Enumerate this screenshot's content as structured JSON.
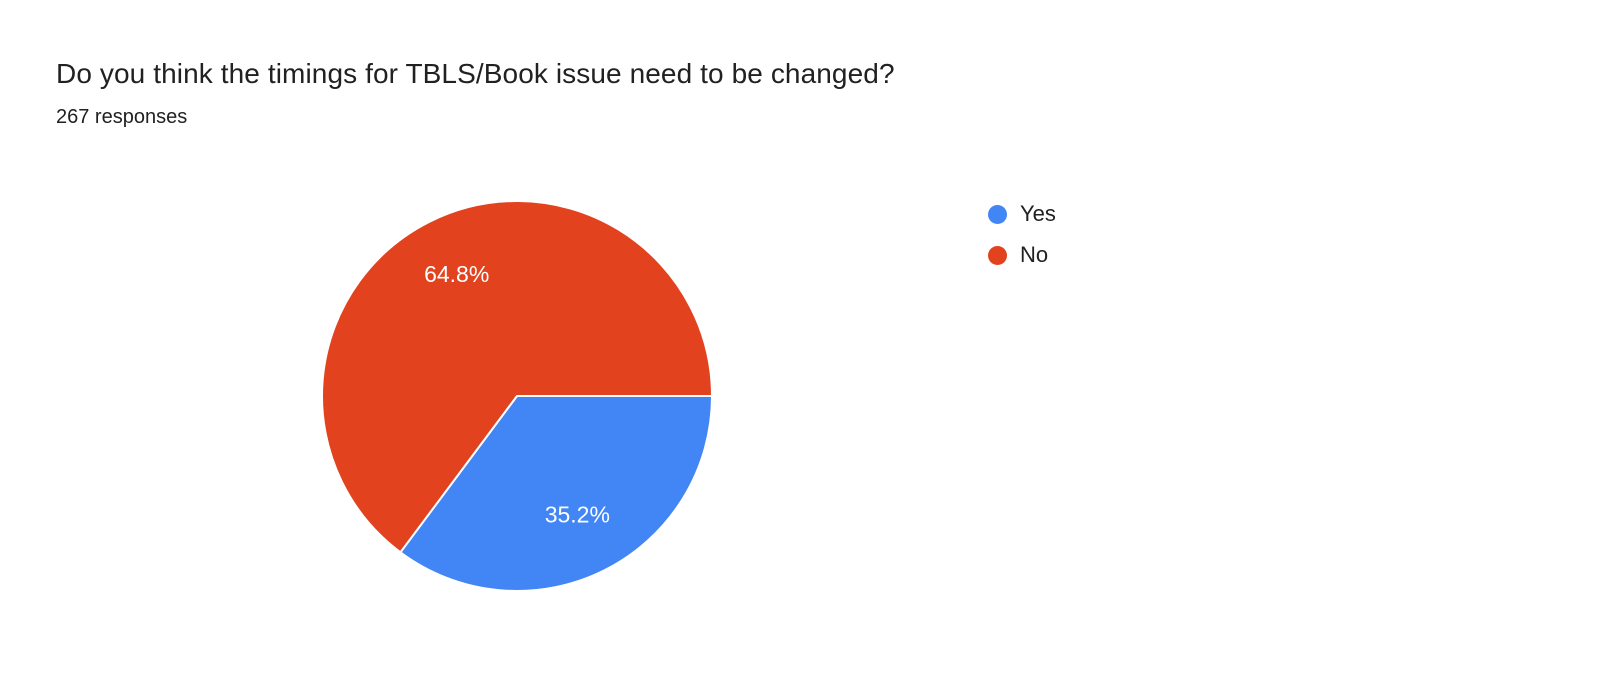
{
  "header": {
    "title": "Do you think the timings for TBLS/Book issue need to be changed?",
    "responses": "267 responses"
  },
  "chart_data": {
    "type": "pie",
    "title": "Do you think the timings for TBLS/Book issue need to be changed?",
    "responses_count": 267,
    "slices": [
      {
        "label": "Yes",
        "value": 35.2,
        "display": "35.2%",
        "color": "#4285f4"
      },
      {
        "label": "No",
        "value": 64.8,
        "display": "64.8%",
        "color": "#e2431e"
      }
    ],
    "start_angle_deg": 0,
    "direction": "clockwise",
    "legend_position": "right",
    "legend_entries": [
      "Yes",
      "No"
    ]
  }
}
